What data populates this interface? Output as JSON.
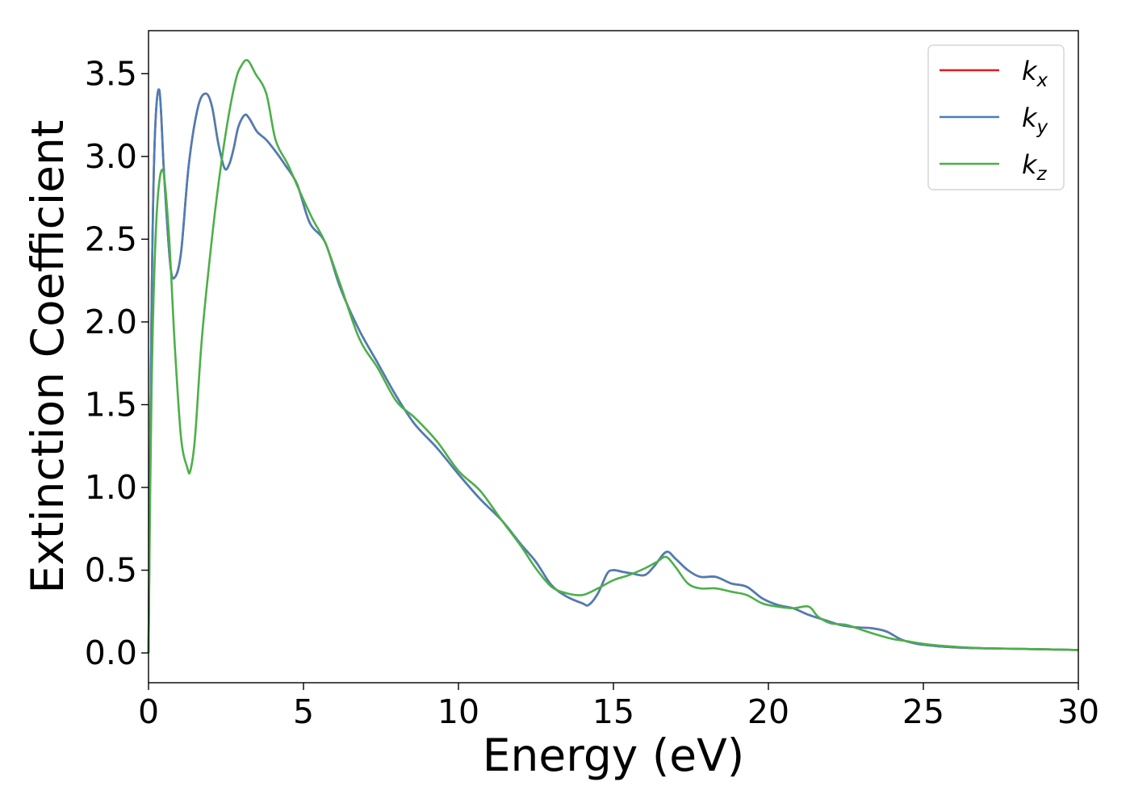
{
  "chart_data": {
    "type": "line",
    "title": "",
    "xlabel": "Energy (eV)",
    "ylabel": "Extinction Coefficient",
    "xlim": [
      0,
      30
    ],
    "ylim": [
      -0.18,
      3.76
    ],
    "xticks": [
      0,
      5,
      10,
      15,
      20,
      25,
      30
    ],
    "xtick_labels": [
      "0",
      "5",
      "10",
      "15",
      "20",
      "25",
      "30"
    ],
    "yticks": [
      0.0,
      0.5,
      1.0,
      1.5,
      2.0,
      2.5,
      3.0,
      3.5
    ],
    "ytick_labels": [
      "0.0",
      "0.5",
      "1.0",
      "1.5",
      "2.0",
      "2.5",
      "3.0",
      "3.5"
    ],
    "grid": false,
    "legend_position": "top-right",
    "series": [
      {
        "name": "k_x",
        "legend_main": "k",
        "legend_sub": "x",
        "color": "#e41a1c",
        "x": [
          0,
          0.1,
          0.2,
          0.35,
          0.5,
          0.7,
          0.85,
          1.05,
          1.3,
          1.6,
          1.85,
          2.05,
          2.25,
          2.45,
          2.6,
          2.75,
          2.9,
          3.1,
          3.25,
          3.5,
          3.8,
          4.1,
          4.4,
          4.8,
          5.2,
          5.7,
          6.2,
          6.8,
          7.4,
          8.0,
          8.6,
          9.3,
          10.0,
          10.7,
          11.4,
          12.0,
          12.5,
          13.0,
          13.5,
          14.0,
          14.2,
          14.5,
          14.8,
          15.0,
          15.3,
          15.6,
          16.0,
          16.3,
          16.7,
          17.0,
          17.4,
          17.8,
          18.3,
          18.8,
          19.3,
          19.8,
          20.3,
          20.8,
          21.3,
          21.8,
          22.3,
          22.8,
          23.3,
          23.8,
          24.3,
          24.8,
          25.5,
          26.5,
          28.0,
          30.0
        ],
        "y": [
          0.0,
          2.1,
          3.1,
          3.4,
          2.9,
          2.35,
          2.27,
          2.42,
          2.95,
          3.3,
          3.38,
          3.3,
          3.08,
          2.93,
          2.95,
          3.05,
          3.18,
          3.25,
          3.23,
          3.15,
          3.1,
          3.03,
          2.95,
          2.83,
          2.6,
          2.48,
          2.2,
          1.95,
          1.75,
          1.55,
          1.38,
          1.24,
          1.08,
          0.93,
          0.8,
          0.66,
          0.55,
          0.41,
          0.34,
          0.3,
          0.29,
          0.36,
          0.48,
          0.5,
          0.49,
          0.48,
          0.47,
          0.52,
          0.61,
          0.57,
          0.5,
          0.46,
          0.46,
          0.42,
          0.4,
          0.33,
          0.29,
          0.27,
          0.23,
          0.2,
          0.17,
          0.155,
          0.15,
          0.13,
          0.08,
          0.055,
          0.04,
          0.03,
          0.025,
          0.018
        ]
      },
      {
        "name": "k_y",
        "legend_main": "k",
        "legend_sub": "y",
        "color": "#4a7fb5",
        "x": [
          0,
          0.1,
          0.2,
          0.35,
          0.5,
          0.7,
          0.85,
          1.05,
          1.3,
          1.6,
          1.85,
          2.05,
          2.25,
          2.45,
          2.6,
          2.75,
          2.9,
          3.1,
          3.25,
          3.5,
          3.8,
          4.1,
          4.4,
          4.8,
          5.2,
          5.7,
          6.2,
          6.8,
          7.4,
          8.0,
          8.6,
          9.3,
          10.0,
          10.7,
          11.4,
          12.0,
          12.5,
          13.0,
          13.5,
          14.0,
          14.2,
          14.5,
          14.8,
          15.0,
          15.3,
          15.6,
          16.0,
          16.3,
          16.7,
          17.0,
          17.4,
          17.8,
          18.3,
          18.8,
          19.3,
          19.8,
          20.3,
          20.8,
          21.3,
          21.8,
          22.3,
          22.8,
          23.3,
          23.8,
          24.3,
          24.8,
          25.5,
          26.5,
          28.0,
          30.0
        ],
        "y": [
          0.0,
          2.1,
          3.1,
          3.4,
          2.9,
          2.35,
          2.27,
          2.42,
          2.95,
          3.3,
          3.38,
          3.3,
          3.08,
          2.93,
          2.95,
          3.05,
          3.18,
          3.25,
          3.23,
          3.15,
          3.1,
          3.03,
          2.95,
          2.83,
          2.6,
          2.48,
          2.2,
          1.95,
          1.75,
          1.55,
          1.38,
          1.24,
          1.08,
          0.93,
          0.8,
          0.66,
          0.55,
          0.41,
          0.34,
          0.3,
          0.29,
          0.36,
          0.48,
          0.5,
          0.49,
          0.48,
          0.47,
          0.52,
          0.61,
          0.57,
          0.5,
          0.46,
          0.46,
          0.42,
          0.4,
          0.33,
          0.29,
          0.27,
          0.23,
          0.2,
          0.17,
          0.155,
          0.15,
          0.13,
          0.08,
          0.055,
          0.04,
          0.03,
          0.025,
          0.018
        ]
      },
      {
        "name": "k_z",
        "legend_main": "k",
        "legend_sub": "z",
        "color": "#4daf4a",
        "x": [
          0,
          0.1,
          0.25,
          0.45,
          0.65,
          0.85,
          1.05,
          1.25,
          1.35,
          1.5,
          1.7,
          1.9,
          2.2,
          2.5,
          2.8,
          3.0,
          3.2,
          3.45,
          3.8,
          4.1,
          4.5,
          4.9,
          5.3,
          5.7,
          6.2,
          6.8,
          7.4,
          8.0,
          8.6,
          9.3,
          10.0,
          10.7,
          11.4,
          12.0,
          12.5,
          13.0,
          13.5,
          14.0,
          14.5,
          15.0,
          15.5,
          16.0,
          16.4,
          16.7,
          17.0,
          17.4,
          17.8,
          18.3,
          18.8,
          19.3,
          19.8,
          20.3,
          20.8,
          21.3,
          21.6,
          22.0,
          22.5,
          23.0,
          23.5,
          24.0,
          24.5,
          25.0,
          25.5,
          26.5,
          28.0,
          30.0
        ],
        "y": [
          0.0,
          1.6,
          2.6,
          2.92,
          2.55,
          1.85,
          1.3,
          1.12,
          1.1,
          1.3,
          1.85,
          2.25,
          2.75,
          3.15,
          3.45,
          3.55,
          3.58,
          3.5,
          3.38,
          3.1,
          2.95,
          2.78,
          2.62,
          2.48,
          2.22,
          1.9,
          1.72,
          1.52,
          1.42,
          1.28,
          1.1,
          0.98,
          0.8,
          0.65,
          0.51,
          0.4,
          0.36,
          0.35,
          0.39,
          0.44,
          0.47,
          0.51,
          0.55,
          0.58,
          0.52,
          0.42,
          0.39,
          0.39,
          0.37,
          0.35,
          0.3,
          0.28,
          0.27,
          0.28,
          0.22,
          0.18,
          0.17,
          0.14,
          0.11,
          0.085,
          0.07,
          0.055,
          0.045,
          0.032,
          0.025,
          0.018
        ]
      }
    ]
  }
}
